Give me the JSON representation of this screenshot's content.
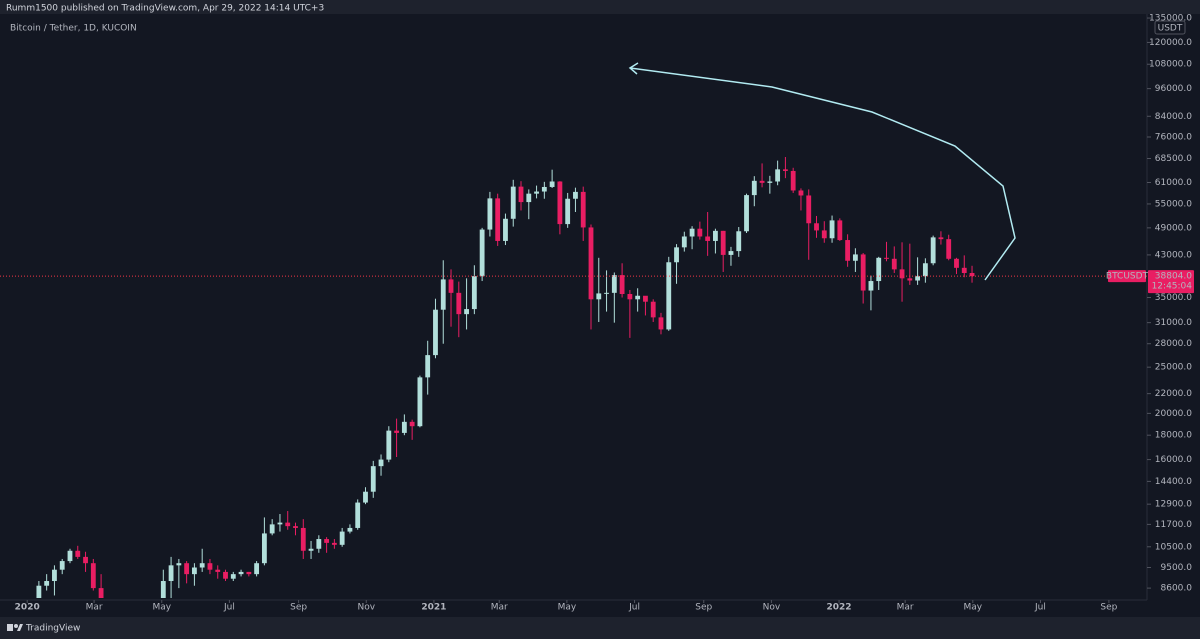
{
  "header": {
    "publisher": "Rumm1500 published on TradingView.com, Apr 29, 2022 14:14 UTC+3"
  },
  "footer": {
    "brand": "TradingView"
  },
  "chart_data": {
    "type": "candlestick",
    "title": "Bitcoin / Tether, 1D, KUCOIN",
    "currency": "USDT",
    "log_scale": true,
    "up_color": "#b2dfdb",
    "down_color": "#e91e63",
    "xlim": [
      -3.5,
      144
    ],
    "xticks": [
      {
        "value": 0,
        "label": "2020"
      },
      {
        "value": 8.6,
        "label": "Mar"
      },
      {
        "value": 17.3,
        "label": "May"
      },
      {
        "value": 26,
        "label": "Jul"
      },
      {
        "value": 34.9,
        "label": "Sep"
      },
      {
        "value": 43.6,
        "label": "Nov"
      },
      {
        "value": 52.3,
        "label": "2021"
      },
      {
        "value": 60.7,
        "label": "Mar"
      },
      {
        "value": 69.4,
        "label": "May"
      },
      {
        "value": 78.1,
        "label": "Jul"
      },
      {
        "value": 87,
        "label": "Sep"
      },
      {
        "value": 95.7,
        "label": "Nov"
      },
      {
        "value": 104.4,
        "label": "2022"
      },
      {
        "value": 112.9,
        "label": "Mar"
      },
      {
        "value": 121.6,
        "label": "May"
      },
      {
        "value": 130.3,
        "label": "Jul"
      },
      {
        "value": 139.1,
        "label": "Sep"
      }
    ],
    "ylim": [
      8120,
      139000
    ],
    "yticks": [
      {
        "value": 8600,
        "label": "8600.0"
      },
      {
        "value": 9500,
        "label": "9500.0"
      },
      {
        "value": 10500,
        "label": "10500.0"
      },
      {
        "value": 11700,
        "label": "11700.0"
      },
      {
        "value": 12900,
        "label": "12900.0"
      },
      {
        "value": 14400,
        "label": "14400.0"
      },
      {
        "value": 16000,
        "label": "16000.0"
      },
      {
        "value": 18000,
        "label": "18000.0"
      },
      {
        "value": 20000,
        "label": "20000.0"
      },
      {
        "value": 22000,
        "label": "22000.0"
      },
      {
        "value": 25000,
        "label": "25000.0"
      },
      {
        "value": 28000,
        "label": "28000.0"
      },
      {
        "value": 31000,
        "label": "31000.0"
      },
      {
        "value": 35000,
        "label": "35000.0"
      },
      {
        "value": 43000,
        "label": "43000.0"
      },
      {
        "value": 49000,
        "label": "49000.0"
      },
      {
        "value": 55000,
        "label": "55000.0"
      },
      {
        "value": 61000,
        "label": "61000.0"
      },
      {
        "value": 68500,
        "label": "68500.0"
      },
      {
        "value": 76000,
        "label": "76000.0"
      },
      {
        "value": 84000,
        "label": "84000.0"
      },
      {
        "value": 96000,
        "label": "96000.0"
      },
      {
        "value": 108000,
        "label": "108000.0"
      },
      {
        "value": 120000,
        "label": "120000.0"
      },
      {
        "value": 135000,
        "label": "135000.0"
      }
    ],
    "price_line": {
      "symbol": "BTCUSDT",
      "value": 38804,
      "label": "38804.0",
      "countdown": "12:45:04",
      "color": "#f23645"
    },
    "ohlc": [
      null,
      [
        8000,
        8900,
        7900,
        8700
      ],
      [
        8700,
        9200,
        8500,
        8900
      ],
      [
        8900,
        9600,
        8300,
        9400
      ],
      [
        9400,
        9900,
        9200,
        9800
      ],
      [
        9800,
        10400,
        9700,
        10300
      ],
      [
        10300,
        10550,
        9900,
        10000
      ],
      [
        10000,
        10250,
        9300,
        9700
      ],
      [
        9700,
        9900,
        8500,
        8600
      ],
      [
        8600,
        9200,
        7700,
        7900
      ],
      null,
      null,
      null,
      null,
      null,
      null,
      null,
      [
        7700,
        9400,
        7600,
        8900
      ],
      [
        8900,
        10000,
        8100,
        9600
      ],
      [
        9600,
        9900,
        8600,
        9700
      ],
      [
        9700,
        9800,
        8800,
        9200
      ],
      [
        9200,
        9700,
        8700,
        9500
      ],
      [
        9500,
        10400,
        9300,
        9700
      ],
      [
        9700,
        9900,
        9200,
        9400
      ],
      [
        9400,
        9600,
        9000,
        9300
      ],
      [
        9300,
        9400,
        8900,
        9000
      ],
      [
        9000,
        9300,
        8900,
        9200
      ],
      [
        9200,
        9400,
        9100,
        9300
      ],
      [
        9300,
        9300,
        9100,
        9200
      ],
      [
        9200,
        9800,
        9100,
        9700
      ],
      [
        9700,
        12100,
        9600,
        11200
      ],
      [
        11200,
        12000,
        11100,
        11700
      ],
      [
        11700,
        12300,
        11300,
        11800
      ],
      [
        11800,
        12480,
        11400,
        11600
      ],
      [
        11600,
        11800,
        11100,
        11500
      ],
      [
        11500,
        12000,
        9900,
        10300
      ],
      [
        10300,
        10800,
        9900,
        10400
      ],
      [
        10400,
        11100,
        10200,
        10900
      ],
      [
        10900,
        11000,
        10200,
        10700
      ],
      [
        10700,
        10900,
        10400,
        10600
      ],
      [
        10600,
        11500,
        10500,
        11300
      ],
      [
        11300,
        11700,
        11200,
        11500
      ],
      [
        11500,
        13200,
        11400,
        13000
      ],
      [
        13000,
        14000,
        12900,
        13700
      ],
      [
        13700,
        15900,
        13300,
        15500
      ],
      [
        15500,
        16400,
        14800,
        16000
      ],
      [
        16000,
        18800,
        15800,
        18400
      ],
      [
        18400,
        19500,
        16200,
        18200
      ],
      [
        18200,
        19900,
        18000,
        19200
      ],
      [
        19200,
        19400,
        17600,
        18800
      ],
      [
        18800,
        24000,
        18700,
        23800
      ],
      [
        23800,
        28400,
        21900,
        26500
      ],
      [
        26500,
        34800,
        26100,
        33000
      ],
      [
        33000,
        41900,
        28000,
        38200
      ],
      [
        38200,
        40100,
        30400,
        35800
      ],
      [
        35800,
        37800,
        28900,
        32300
      ],
      [
        32300,
        38400,
        30000,
        33100
      ],
      [
        33100,
        40900,
        32300,
        38800
      ],
      [
        38800,
        49000,
        37900,
        48600
      ],
      [
        48600,
        58300,
        47000,
        56500
      ],
      [
        56500,
        57800,
        44900,
        46000
      ],
      [
        46000,
        52500,
        45100,
        51200
      ],
      [
        51200,
        61800,
        49300,
        59800
      ],
      [
        59800,
        61400,
        53300,
        55500
      ],
      [
        55500,
        59000,
        51100,
        57800
      ],
      [
        57800,
        60100,
        56500,
        58400
      ],
      [
        58400,
        61200,
        56400,
        59700
      ],
      [
        59700,
        64900,
        59400,
        61300
      ],
      [
        61300,
        61400,
        47500,
        49900
      ],
      [
        49900,
        58000,
        49000,
        56400
      ],
      [
        56400,
        59500,
        52900,
        58300
      ],
      [
        58300,
        59800,
        46000,
        49100
      ],
      [
        49100,
        49800,
        30000,
        34700
      ],
      [
        34700,
        42400,
        31100,
        35700
      ],
      [
        35700,
        39900,
        32700,
        35800
      ],
      [
        35800,
        39500,
        31000,
        39000
      ],
      [
        39000,
        41300,
        35000,
        35600
      ],
      [
        35600,
        36300,
        28800,
        34700
      ],
      [
        34700,
        36600,
        32700,
        35300
      ],
      [
        35300,
        35200,
        32100,
        34300
      ],
      [
        34300,
        34700,
        31100,
        31800
      ],
      [
        31800,
        32500,
        29300,
        30000
      ],
      [
        30000,
        42600,
        29800,
        41500
      ],
      [
        41500,
        45300,
        37400,
        44600
      ],
      [
        44600,
        48100,
        43700,
        47000
      ],
      [
        47000,
        49400,
        44200,
        48800
      ],
      [
        48800,
        50500,
        46300,
        47000
      ],
      [
        47000,
        52900,
        42800,
        46000
      ],
      [
        46000,
        48800,
        43300,
        48300
      ],
      [
        48300,
        48300,
        39600,
        43000
      ],
      [
        43000,
        44700,
        40800,
        43800
      ],
      [
        43800,
        49200,
        42600,
        48200
      ],
      [
        48200,
        57800,
        47800,
        57400
      ],
      [
        57400,
        62900,
        54400,
        61500
      ],
      [
        61500,
        66900,
        59600,
        60900
      ],
      [
        60900,
        63000,
        57800,
        61300
      ],
      [
        61300,
        67800,
        60200,
        65000
      ],
      [
        65000,
        69000,
        62300,
        64500
      ],
      [
        64500,
        65500,
        58000,
        58700
      ],
      [
        58700,
        59300,
        53300,
        57300
      ],
      [
        57300,
        59000,
        42000,
        50100
      ],
      [
        50100,
        51900,
        46700,
        48400
      ],
      [
        48400,
        50600,
        45600,
        46600
      ],
      [
        46600,
        52000,
        45600,
        50800
      ],
      [
        50800,
        51300,
        46000,
        46200
      ],
      [
        46200,
        47500,
        40600,
        41800
      ],
      [
        41800,
        44400,
        39600,
        43100
      ],
      [
        43100,
        43400,
        34000,
        36200
      ],
      [
        36200,
        38900,
        32900,
        37900
      ],
      [
        37900,
        42600,
        36300,
        42400
      ],
      [
        42400,
        45800,
        41700,
        42200
      ],
      [
        42200,
        44800,
        39400,
        40100
      ],
      [
        40100,
        45700,
        34300,
        38400
      ],
      [
        38400,
        45400,
        37200,
        38000
      ],
      [
        38000,
        42500,
        37200,
        38800
      ],
      [
        38800,
        42300,
        37600,
        41300
      ],
      [
        41300,
        47200,
        40900,
        46800
      ],
      [
        46800,
        48200,
        45200,
        46400
      ],
      [
        46400,
        47400,
        41900,
        42200
      ],
      [
        42200,
        42400,
        39200,
        40400
      ],
      [
        40400,
        42900,
        38600,
        39400
      ],
      [
        39400,
        40800,
        37600,
        38804
      ]
    ]
  }
}
